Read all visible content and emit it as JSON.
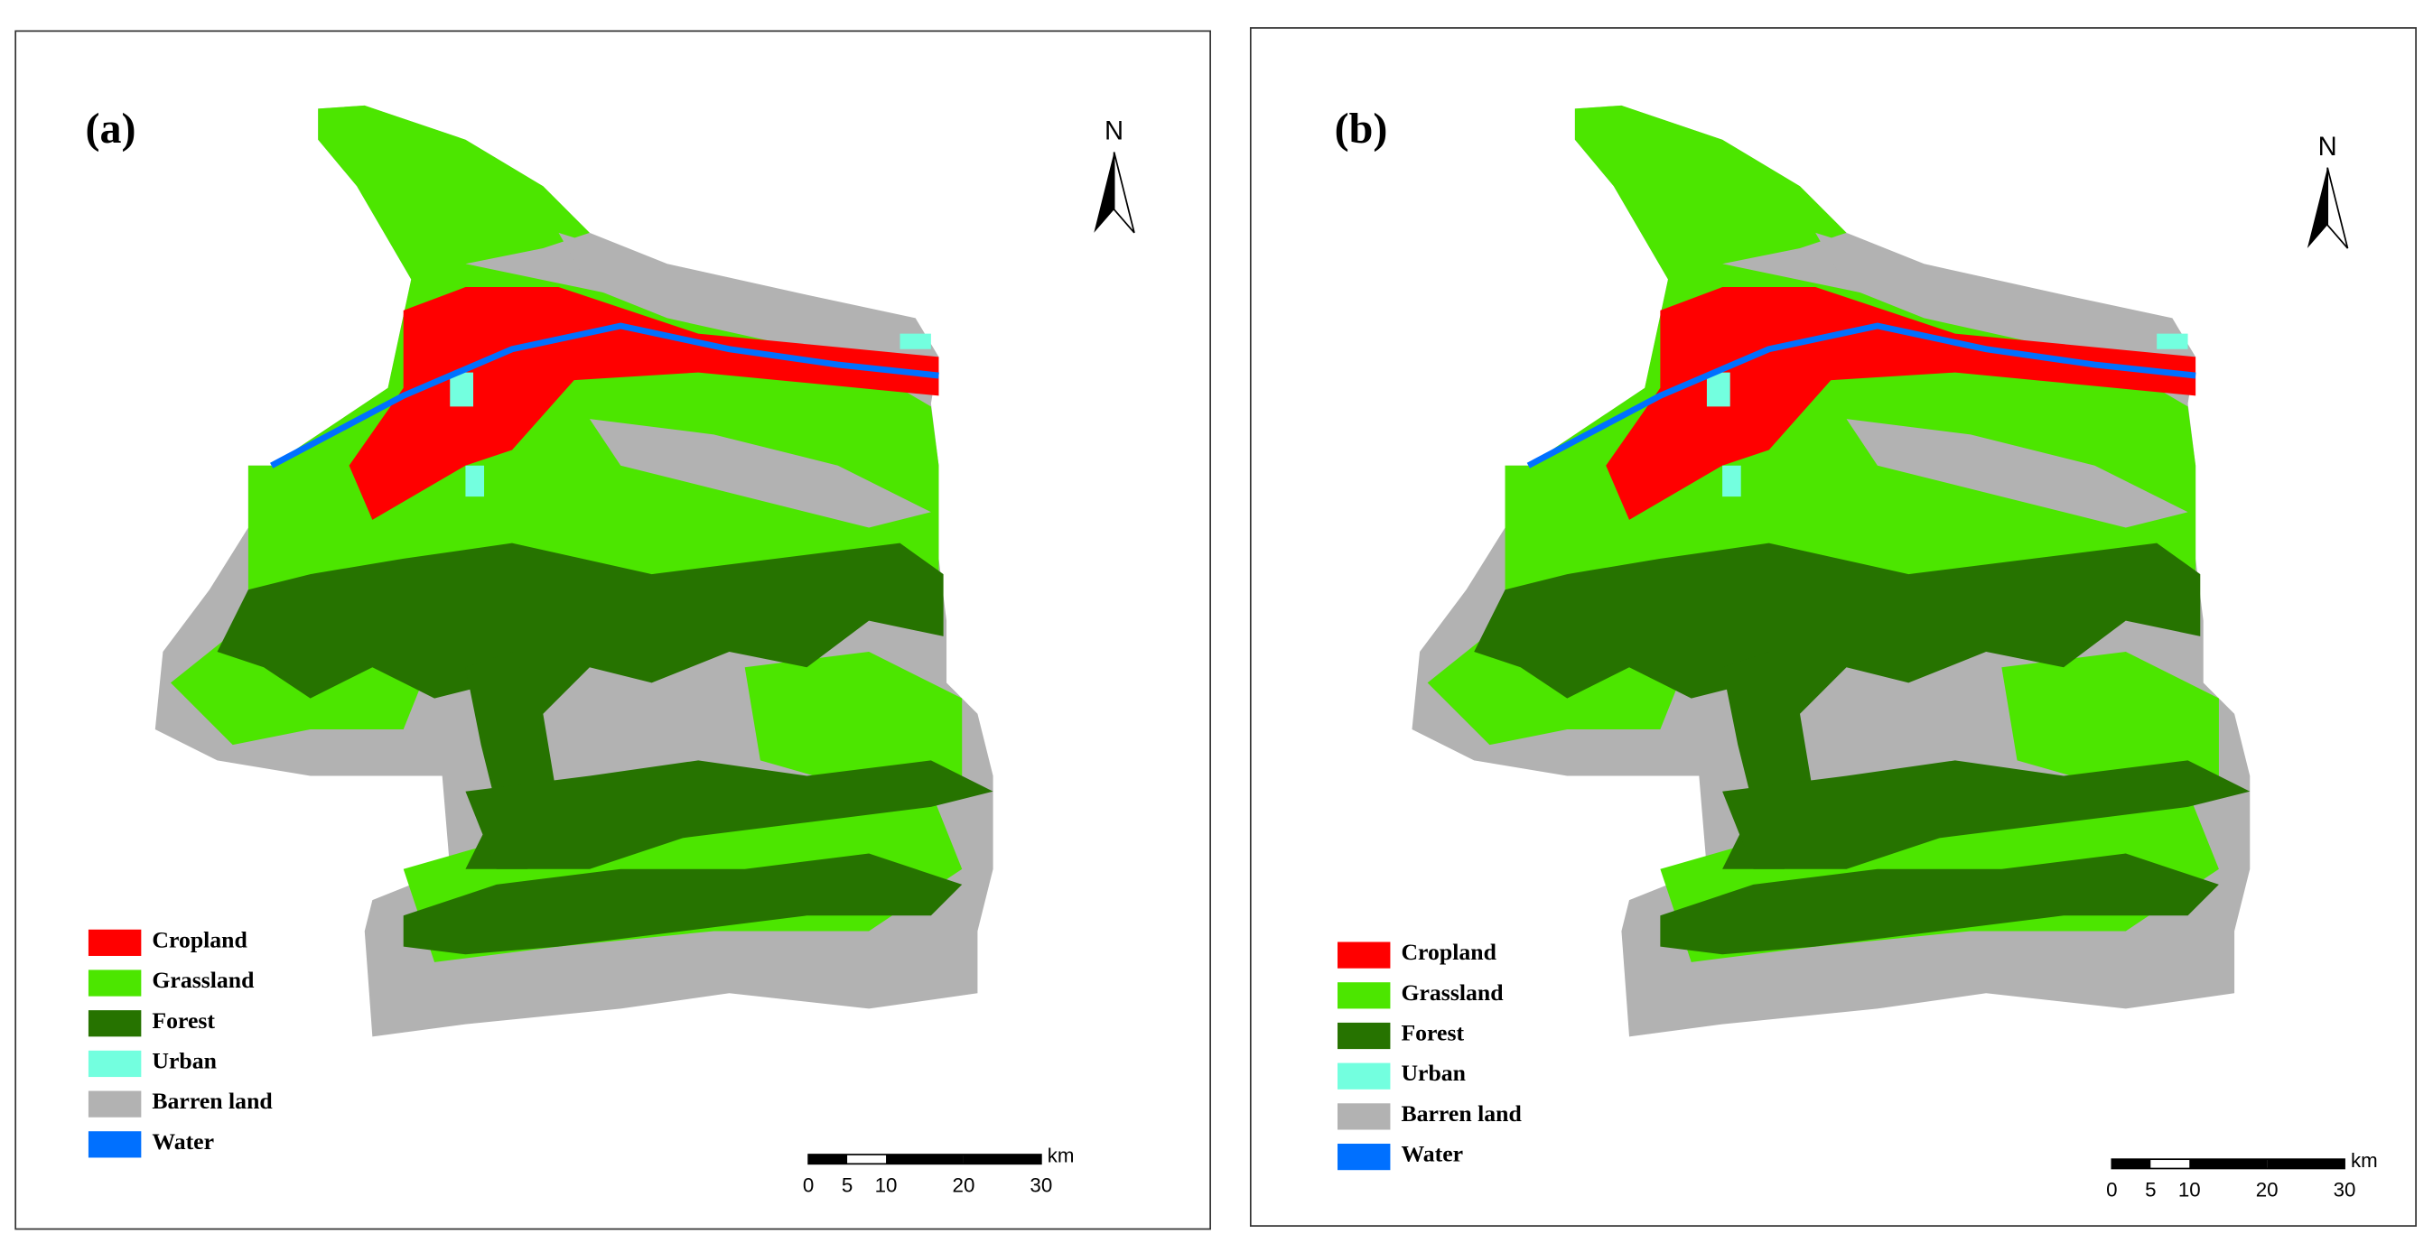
{
  "panels": [
    {
      "label": "(a)",
      "north": "N",
      "legend": [
        {
          "name": "Cropland",
          "color": "#ff0000"
        },
        {
          "name": "Grassland",
          "color": "#4ce600"
        },
        {
          "name": "Forest",
          "color": "#267300"
        },
        {
          "name": "Urban",
          "color": "#73ffdf"
        },
        {
          "name": "Barren land",
          "color": "#b2b2b2"
        },
        {
          "name": "Water",
          "color": "#0070ff"
        }
      ],
      "scale": {
        "ticks": [
          0,
          5,
          10,
          20,
          30
        ],
        "unit": "km"
      }
    },
    {
      "label": "(b)",
      "north": "N",
      "legend": [
        {
          "name": "Cropland",
          "color": "#ff0000"
        },
        {
          "name": "Grassland",
          "color": "#4ce600"
        },
        {
          "name": "Forest",
          "color": "#267300"
        },
        {
          "name": "Urban",
          "color": "#73ffdf"
        },
        {
          "name": "Barren land",
          "color": "#b2b2b2"
        },
        {
          "name": "Water",
          "color": "#0070ff"
        }
      ],
      "scale": {
        "ticks": [
          0,
          5,
          10,
          20,
          30
        ],
        "unit": "km"
      }
    }
  ]
}
